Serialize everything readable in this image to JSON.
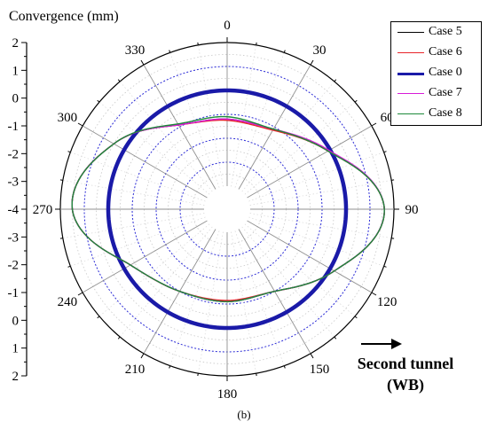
{
  "chart_data": {
    "type": "polar-line",
    "title": "",
    "radial_label": "Convergence (mm)",
    "radial_ticks": [
      "2",
      "1",
      "0",
      "-1",
      "-2",
      "-3",
      "-4",
      "-3",
      "-2",
      "-1",
      "0",
      "1",
      "2"
    ],
    "radial_range": [
      -4,
      2
    ],
    "radial_gridlines": [
      -3,
      -2,
      -1,
      0,
      1
    ],
    "angle_unit": "degrees",
    "angle_zero": "top",
    "angle_direction": "clockwise",
    "angular_ticks": [
      "0",
      "30",
      "60",
      "90",
      "120",
      "150",
      "180",
      "210",
      "240",
      "270",
      "300",
      "330"
    ],
    "grid": true,
    "legend_position": "top-right",
    "series": [
      {
        "name": "Case 5",
        "color": "#000000",
        "theta": [
          0,
          30,
          60,
          90,
          120,
          150,
          180,
          210,
          240,
          270,
          300,
          330,
          360
        ],
        "r": [
          -1.2,
          -1.1,
          -0.1,
          1.6,
          0.2,
          -1.0,
          -1.1,
          -1.0,
          -0.3,
          1.5,
          0.5,
          -0.9,
          -1.2
        ]
      },
      {
        "name": "Case 6",
        "color": "#e8252a",
        "theta": [
          0,
          30,
          60,
          90,
          120,
          150,
          180,
          210,
          240,
          270,
          300,
          330,
          360
        ],
        "r": [
          -1.25,
          -1.15,
          -0.1,
          1.6,
          0.2,
          -1.0,
          -1.15,
          -1.0,
          -0.3,
          1.5,
          0.5,
          -0.9,
          -1.25
        ]
      },
      {
        "name": "Case 0",
        "color": "#1a1aa8",
        "theta": [
          0,
          30,
          60,
          90,
          120,
          150,
          180,
          210,
          240,
          270,
          300,
          330,
          360
        ],
        "r": [
          0,
          0,
          0,
          0,
          0,
          0,
          0,
          0,
          0,
          0,
          0,
          0,
          0
        ]
      },
      {
        "name": "Case 7",
        "color": "#d81bd8",
        "theta": [
          0,
          30,
          60,
          90,
          120,
          150,
          180,
          210,
          240,
          270,
          300,
          330,
          360
        ],
        "r": [
          -1.2,
          -1.1,
          -0.05,
          1.6,
          0.2,
          -1.0,
          -1.1,
          -1.0,
          -0.3,
          1.5,
          0.5,
          -0.9,
          -1.2
        ]
      },
      {
        "name": "Case 8",
        "color": "#1d8a3a",
        "theta": [
          0,
          30,
          60,
          90,
          120,
          150,
          180,
          210,
          240,
          270,
          300,
          330,
          360
        ],
        "r": [
          -1.1,
          -1.1,
          -0.1,
          1.6,
          0.2,
          -1.0,
          -1.1,
          -1.0,
          -0.3,
          1.5,
          0.5,
          -0.85,
          -1.1
        ]
      }
    ],
    "annotations": {
      "direction_line1": "Second tunnel",
      "direction_line2": "(WB)",
      "panel_label": "(b)"
    }
  }
}
